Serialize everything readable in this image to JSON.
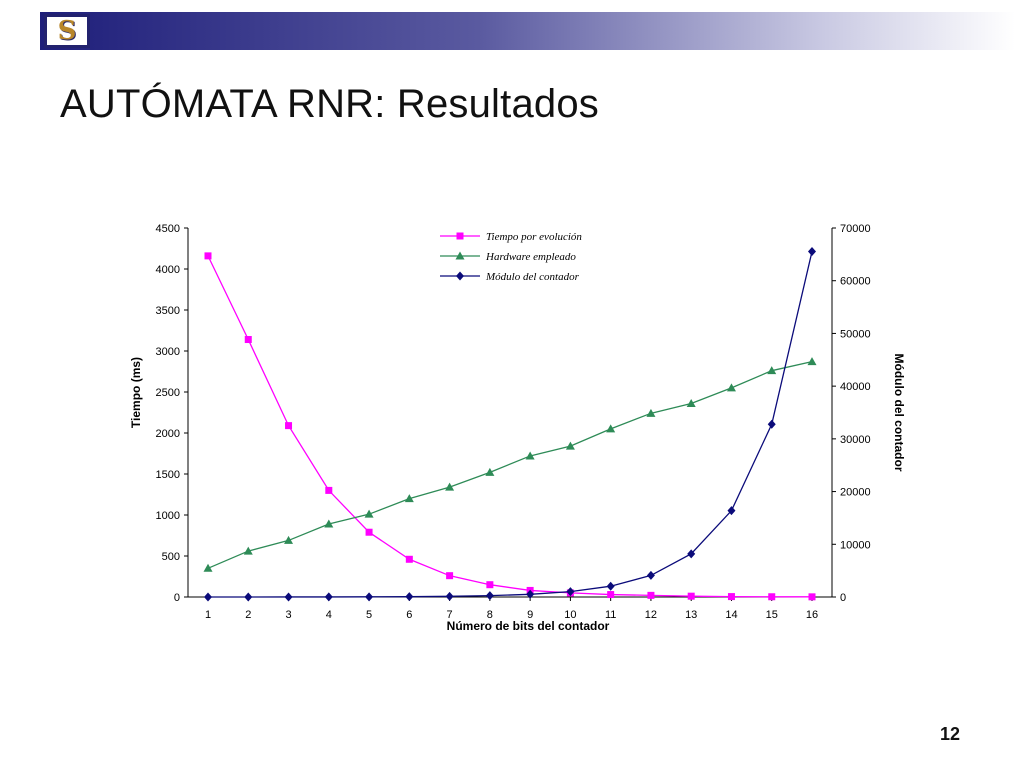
{
  "slide": {
    "title": "AUTÓMATA RNR: Resultados",
    "page_number": "12",
    "logo_text": "S"
  },
  "chart_data": {
    "type": "line",
    "xlabel": "Número de bits del contador",
    "ylabel": "Tiempo (ms)",
    "y2label": "Módulo del contador",
    "categories": [
      "1",
      "2",
      "3",
      "4",
      "5",
      "6",
      "7",
      "8",
      "9",
      "10",
      "11",
      "12",
      "13",
      "14",
      "15",
      "16"
    ],
    "ylim": [
      0,
      4500
    ],
    "y2lim": [
      0,
      70000
    ],
    "yticks": [
      0,
      500,
      1000,
      1500,
      2000,
      2500,
      3000,
      3500,
      4000,
      4500
    ],
    "y2ticks": [
      0,
      10000,
      20000,
      30000,
      40000,
      50000,
      60000,
      70000
    ],
    "grid": false,
    "legend_position": "top-center",
    "series": [
      {
        "name": "Tiempo por evolución",
        "axis": "left",
        "color": "#ff00ff",
        "marker": "square",
        "values": [
          4160,
          3140,
          2090,
          1300,
          790,
          460,
          260,
          150,
          80,
          50,
          30,
          20,
          10,
          5,
          3,
          2
        ]
      },
      {
        "name": "Hardware empleado",
        "axis": "left",
        "color": "#2e8b57",
        "marker": "triangle",
        "values": [
          350,
          560,
          690,
          890,
          1010,
          1200,
          1340,
          1520,
          1720,
          1840,
          2050,
          2240,
          2360,
          2550,
          2760,
          2870
        ]
      },
      {
        "name": "Módulo del contador",
        "axis": "right",
        "color": "#0b0b7a",
        "marker": "diamond",
        "values": [
          2,
          4,
          8,
          16,
          32,
          64,
          128,
          256,
          512,
          1024,
          2048,
          4096,
          8192,
          16384,
          32768,
          65536
        ]
      }
    ]
  }
}
